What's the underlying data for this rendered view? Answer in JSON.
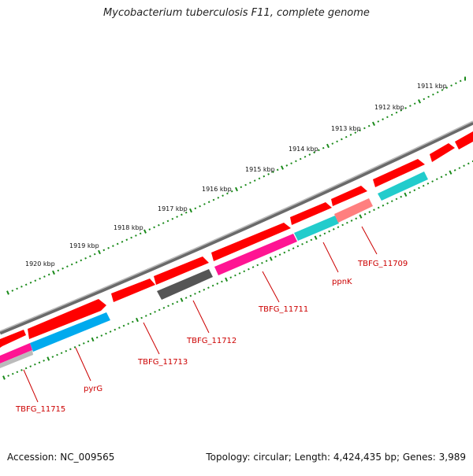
{
  "title": "Mycobacterium tuberculosis F11, complete genome",
  "accession": "Accession: NC_009565",
  "summary": "Topology: circular; Length: 4,424,435 bp; Genes: 3,989",
  "colors": {
    "backbone": "#8a8a8a",
    "cds_forward": "#ff0000",
    "tick": "#1a8a1a",
    "label": "#cc0000",
    "magenta": "#ff1493",
    "blue": "#00aaee",
    "cyan": "#22cccc",
    "gray": "#555555",
    "pink": "#ff7f7f"
  },
  "scale_labels": [
    "1911 kbp",
    "1912 kbp",
    "1913 kbp",
    "1914 kbp",
    "1915 kbp",
    "1916 kbp",
    "1917 kbp",
    "1918 kbp",
    "1919 kbp",
    "1920 kbp"
  ],
  "gene_labels": [
    "TBFG_11709",
    "ppnK",
    "TBFG_11711",
    "TBFG_11712",
    "TBFG_11713",
    "pyrG",
    "TBFG_11715"
  ]
}
